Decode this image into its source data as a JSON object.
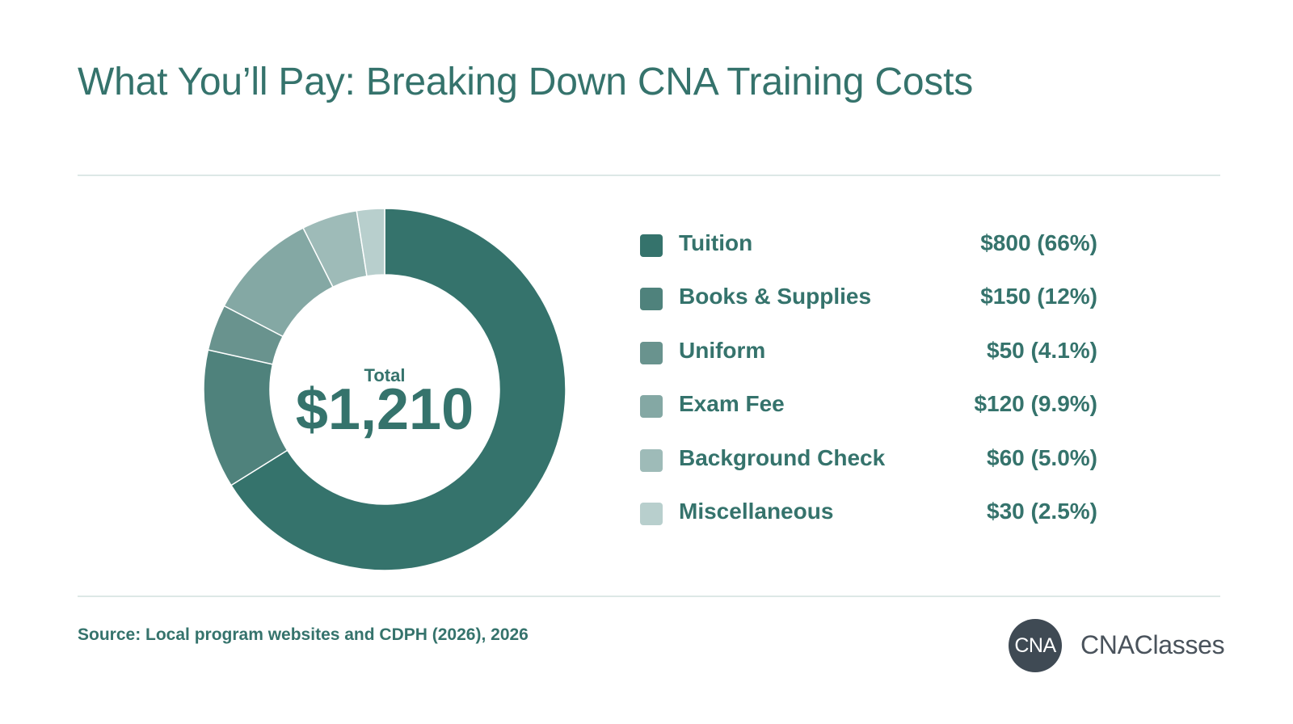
{
  "title": "What You’ll Pay: Breaking Down CNA Training Costs",
  "center": {
    "label": "Total",
    "value": "$1,210"
  },
  "chart_data": {
    "type": "pie",
    "variant": "donut",
    "title": "What You’ll Pay: Breaking Down CNA Training Costs",
    "total": 1210,
    "legend_placement": "right",
    "slices": [
      {
        "label": "Tuition",
        "value": 800,
        "display": "$800 (66%)",
        "color": "#35736c"
      },
      {
        "label": "Books & Supplies",
        "value": 150,
        "display": "$150 (12%)",
        "color": "#4f827c"
      },
      {
        "label": "Uniform",
        "value": 50,
        "display": "$50 (4.1%)",
        "color": "#69938e"
      },
      {
        "label": "Exam Fee",
        "value": 120,
        "display": "$120 (9.9%)",
        "color": "#84a8a4"
      },
      {
        "label": "Background Check",
        "value": 60,
        "display": "$60 (5.0%)",
        "color": "#9ebbb8"
      },
      {
        "label": "Miscellaneous",
        "value": 30,
        "display": "$30 (2.5%)",
        "color": "#b8cfcd"
      }
    ]
  },
  "footer": {
    "source": "Source: Local program websites and CDPH (2026), 2026",
    "logo_text": "CNA",
    "brand_name": "CNAClasses"
  }
}
